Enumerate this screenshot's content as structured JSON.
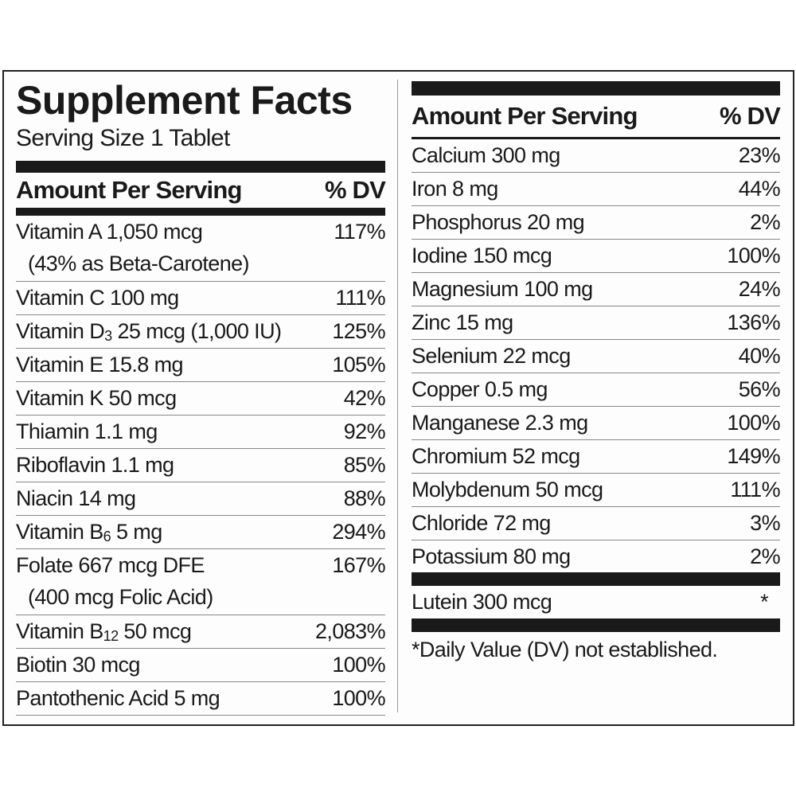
{
  "title": "Supplement Facts",
  "serving_size": "Serving Size 1 Tablet",
  "header": {
    "amount": "Amount Per Serving",
    "dv": "% DV"
  },
  "left_rows": [
    {
      "pre": "Vitamin A 1,050 mcg",
      "sub": "",
      "post": "",
      "line2": "(43% as Beta-Carotene)",
      "dv": "117%"
    },
    {
      "pre": "Vitamin C 100 mg",
      "sub": "",
      "post": "",
      "line2": "",
      "dv": "111%"
    },
    {
      "pre": "Vitamin D",
      "sub": "3",
      "post": " 25 mcg (1,000 IU)",
      "line2": "",
      "dv": "125%"
    },
    {
      "pre": "Vitamin E  15.8 mg",
      "sub": "",
      "post": "",
      "line2": "",
      "dv": "105%"
    },
    {
      "pre": "Vitamin K 50 mcg",
      "sub": "",
      "post": "",
      "line2": "",
      "dv": "42%"
    },
    {
      "pre": "Thiamin 1.1 mg",
      "sub": "",
      "post": "",
      "line2": "",
      "dv": "92%"
    },
    {
      "pre": "Riboflavin 1.1 mg",
      "sub": "",
      "post": "",
      "line2": "",
      "dv": "85%"
    },
    {
      "pre": "Niacin 14 mg",
      "sub": "",
      "post": "",
      "line2": "",
      "dv": "88%"
    },
    {
      "pre": "Vitamin B",
      "sub": "6",
      "post": " 5 mg",
      "line2": "",
      "dv": "294%"
    },
    {
      "pre": "Folate 667 mcg DFE",
      "sub": "",
      "post": "",
      "line2": "(400 mcg Folic Acid)",
      "dv": "167%"
    },
    {
      "pre": "Vitamin B",
      "sub": "12",
      "post": " 50 mcg",
      "line2": "",
      "dv": "2,083%"
    },
    {
      "pre": "Biotin 30 mcg",
      "sub": "",
      "post": "",
      "line2": "",
      "dv": "100%"
    },
    {
      "pre": "Pantothenic Acid 5 mg",
      "sub": "",
      "post": "",
      "line2": "",
      "dv": "100%"
    }
  ],
  "right_rows": [
    {
      "name": "Calcium 300 mg",
      "dv": "23%"
    },
    {
      "name": "Iron 8 mg",
      "dv": "44%"
    },
    {
      "name": "Phosphorus 20 mg",
      "dv": "2%"
    },
    {
      "name": "Iodine 150 mcg",
      "dv": "100%"
    },
    {
      "name": "Magnesium 100 mg",
      "dv": "24%"
    },
    {
      "name": "Zinc 15 mg",
      "dv": "136%"
    },
    {
      "name": "Selenium 22 mcg",
      "dv": "40%"
    },
    {
      "name": "Copper 0.5 mg",
      "dv": "56%"
    },
    {
      "name": "Manganese 2.3 mg",
      "dv": "100%"
    },
    {
      "name": "Chromium 52 mcg",
      "dv": "149%"
    },
    {
      "name": "Molybdenum 50 mcg",
      "dv": "111%"
    },
    {
      "name": "Chloride 72 mg",
      "dv": "3%"
    },
    {
      "name": "Potassium 80 mg",
      "dv": "2%"
    }
  ],
  "extra_row": {
    "name": "Lutein 300 mcg",
    "dv": "*"
  },
  "footnote": "*Daily Value (DV) not established."
}
